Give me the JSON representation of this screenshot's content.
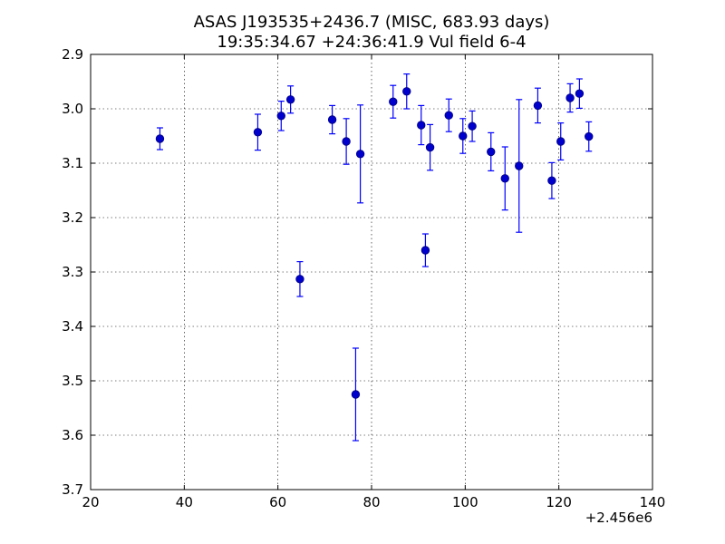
{
  "chart_data": {
    "type": "scatter",
    "title": "ASAS J193535+2436.7 (MISC, 683.93 days)",
    "subtitle": "19:35:34.67 +24:36:41.9 Vul field 6-4",
    "xlabel": "",
    "ylabel": "",
    "x_offset_label": "+2.456e6",
    "xlim": [
      20,
      140
    ],
    "ylim": [
      2.9,
      3.7
    ],
    "y_inverted": true,
    "x_ticks": [
      20,
      40,
      60,
      80,
      100,
      120,
      140
    ],
    "x_tick_labels": [
      "20",
      "40",
      "60",
      "80",
      "100",
      "120",
      "140"
    ],
    "y_ticks": [
      2.9,
      3.0,
      3.1,
      3.2,
      3.3,
      3.4,
      3.5,
      3.6,
      3.7
    ],
    "y_tick_labels": [
      "2.9",
      "3.0",
      "3.1",
      "3.2",
      "3.3",
      "3.4",
      "3.5",
      "3.6",
      "3.7"
    ],
    "grid": true,
    "marker_color": "#0000cc",
    "errorbar_color": "#0000ff",
    "series": [
      {
        "points": [
          {
            "x": 34.8,
            "y": 3.055,
            "err": 0.02
          },
          {
            "x": 55.7,
            "y": 3.043,
            "err": 0.033
          },
          {
            "x": 60.7,
            "y": 3.013,
            "err": 0.027
          },
          {
            "x": 62.7,
            "y": 2.983,
            "err": 0.025
          },
          {
            "x": 64.7,
            "y": 3.313,
            "err": 0.032
          },
          {
            "x": 71.6,
            "y": 3.02,
            "err": 0.026
          },
          {
            "x": 74.6,
            "y": 3.06,
            "err": 0.042
          },
          {
            "x": 76.6,
            "y": 3.525,
            "err": 0.085
          },
          {
            "x": 77.6,
            "y": 3.083,
            "err": 0.09
          },
          {
            "x": 84.6,
            "y": 2.987,
            "err": 0.03
          },
          {
            "x": 87.5,
            "y": 2.968,
            "err": 0.032
          },
          {
            "x": 90.6,
            "y": 3.03,
            "err": 0.036
          },
          {
            "x": 91.5,
            "y": 3.26,
            "err": 0.03
          },
          {
            "x": 92.5,
            "y": 3.071,
            "err": 0.042
          },
          {
            "x": 96.5,
            "y": 3.012,
            "err": 0.03
          },
          {
            "x": 99.5,
            "y": 3.05,
            "err": 0.032
          },
          {
            "x": 101.5,
            "y": 3.032,
            "err": 0.028
          },
          {
            "x": 105.5,
            "y": 3.079,
            "err": 0.035
          },
          {
            "x": 108.5,
            "y": 3.128,
            "err": 0.058
          },
          {
            "x": 111.5,
            "y": 3.105,
            "err": 0.122
          },
          {
            "x": 115.5,
            "y": 2.994,
            "err": 0.032
          },
          {
            "x": 118.5,
            "y": 3.132,
            "err": 0.033
          },
          {
            "x": 120.4,
            "y": 3.06,
            "err": 0.034
          },
          {
            "x": 122.4,
            "y": 2.98,
            "err": 0.026
          },
          {
            "x": 124.4,
            "y": 2.972,
            "err": 0.027
          },
          {
            "x": 126.4,
            "y": 3.051,
            "err": 0.027
          }
        ]
      }
    ]
  }
}
